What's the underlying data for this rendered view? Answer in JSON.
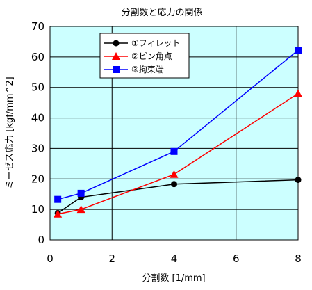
{
  "chart_data": {
    "type": "line",
    "title": "分割数と応力の関係",
    "xlabel": "分割数 [1/mm]",
    "ylabel": "ミーゼス応力 [kgf/mm^2]",
    "xlim": [
      0,
      8
    ],
    "ylim": [
      0,
      70
    ],
    "xticks": [
      0,
      2,
      4,
      6,
      8
    ],
    "yticks": [
      0,
      10,
      20,
      30,
      40,
      50,
      60,
      70
    ],
    "grid": true,
    "legend_position": "top-left",
    "plot_background": "#ccffff",
    "series": [
      {
        "name": "①フィレット",
        "color": "#000000",
        "marker": "circle",
        "x": [
          0.25,
          1,
          4,
          8
        ],
        "y": [
          8.8,
          14.0,
          18.3,
          19.7
        ]
      },
      {
        "name": "②ピン角点",
        "color": "#ff0000",
        "marker": "triangle",
        "x": [
          0.25,
          1,
          4,
          8
        ],
        "y": [
          8.5,
          10.0,
          21.5,
          48.0
        ]
      },
      {
        "name": "③拘束端",
        "color": "#0000ff",
        "marker": "square",
        "x": [
          0.25,
          1,
          4,
          8
        ],
        "y": [
          13.3,
          15.3,
          29.0,
          62.2
        ]
      }
    ]
  }
}
